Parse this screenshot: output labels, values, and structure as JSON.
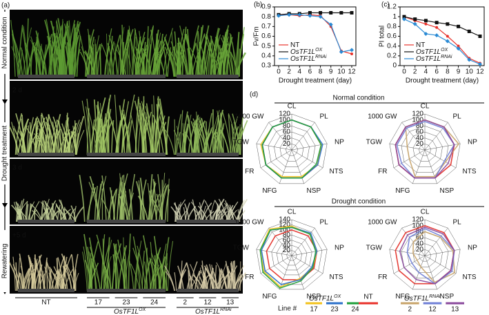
{
  "panel_a": {
    "label": "(a)",
    "side_labels": [
      "Normal condition",
      "Drought treatment",
      "Rewatering"
    ],
    "photo_labels": [
      "2 d",
      "3 d",
      "+5 d"
    ],
    "groups": [
      {
        "name": "NT"
      },
      {
        "name": "OsTF1L",
        "sup": "OX",
        "lines": [
          "17",
          "23",
          "24"
        ]
      },
      {
        "name": "OsTF1L",
        "sup": "RNAi",
        "lines": [
          "2",
          "12",
          "13"
        ]
      }
    ]
  },
  "panel_d": {
    "label": "(d)",
    "sections": [
      "Normal condition",
      "Drought condition"
    ],
    "legend": {
      "line_label": "Line #",
      "groups": [
        {
          "name": "OsTF1L",
          "sup": "OX",
          "lines": [
            "17",
            "23",
            "24"
          ],
          "colors": [
            "#f2c21b",
            "#2a6fc9",
            "#1e9e3a"
          ]
        },
        {
          "name": "NT",
          "colors": [
            "#e8312a"
          ]
        },
        {
          "name": "OsTF1L",
          "sup": "RNAi",
          "lines": [
            "2",
            "12",
            "13"
          ],
          "colors": [
            "#c8a46a",
            "#6f7fd6",
            "#8a4a9c"
          ]
        }
      ]
    }
  },
  "chart_data": [
    {
      "type": "line",
      "panel_label": "(b)",
      "x_label": "Drought treatment (day)",
      "y_label": "Fv/Fm",
      "categories": [
        "0",
        "2",
        "4",
        "6",
        "8",
        "9",
        "10",
        "12"
      ],
      "ylim": [
        0.3,
        0.9
      ],
      "yticks": [
        0.3,
        0.4,
        0.5,
        0.6,
        0.7,
        0.8,
        0.9
      ],
      "legend": "lower left",
      "series": [
        {
          "name": "NT",
          "color": "#e8312a",
          "marker": "circle",
          "values": [
            0.82,
            0.82,
            0.81,
            0.82,
            0.81,
            0.7,
            0.45,
            0.42
          ]
        },
        {
          "name": "OsTF1L",
          "name_sup": "OX",
          "color": "#111111",
          "marker": "square",
          "values": [
            0.82,
            0.83,
            0.83,
            0.84,
            0.84,
            0.84,
            0.84,
            0.84
          ]
        },
        {
          "name": "OsTF1L",
          "name_sup": "RNAi",
          "color": "#2a8ad4",
          "marker": "diamond",
          "values": [
            0.81,
            0.82,
            0.82,
            0.81,
            0.8,
            0.72,
            0.44,
            0.46
          ]
        }
      ]
    },
    {
      "type": "line",
      "panel_label": "(c)",
      "x_label": "Drought treatment (day)",
      "y_label": "PI total",
      "categories": [
        "0",
        "2",
        "4",
        "6",
        "8",
        "9",
        "10",
        "12"
      ],
      "ylim": [
        0,
        1.2
      ],
      "yticks": [
        0,
        0.2,
        0.4,
        0.6,
        0.8,
        1,
        1.2
      ],
      "legend": "lower left",
      "series": [
        {
          "name": "NT",
          "color": "#e8312a",
          "marker": "circle",
          "values": [
            1.0,
            0.92,
            0.85,
            0.78,
            0.6,
            0.4,
            0.15,
            0.05
          ]
        },
        {
          "name": "OsTF1L",
          "name_sup": "OX",
          "color": "#111111",
          "marker": "square",
          "values": [
            1.0,
            0.95,
            0.92,
            0.88,
            0.85,
            0.8,
            0.7,
            0.6
          ]
        },
        {
          "name": "OsTF1L",
          "name_sup": "RNAi",
          "color": "#2a8ad4",
          "marker": "diamond",
          "values": [
            0.95,
            0.85,
            0.65,
            0.62,
            0.5,
            0.35,
            0.12,
            0.03
          ]
        }
      ]
    },
    {
      "type": "radar",
      "categories": [
        "CL",
        "PL",
        "NP",
        "NTS",
        "NSP",
        "NFG",
        "FR",
        "TGW",
        "1000 GW"
      ],
      "rlim": [
        0,
        120
      ],
      "rticks": [
        20,
        40,
        60,
        80,
        100,
        120
      ],
      "series": [
        {
          "name": "NT",
          "color": "#e8312a",
          "values": [
            100,
            100,
            100,
            100,
            100,
            100,
            100,
            100,
            100
          ]
        },
        {
          "name": "17",
          "color": "#f2c21b",
          "values": [
            100,
            100,
            100,
            100,
            95,
            95,
            100,
            105,
            100
          ]
        },
        {
          "name": "23",
          "color": "#2a6fc9",
          "values": [
            100,
            100,
            105,
            100,
            100,
            100,
            100,
            100,
            100
          ]
        },
        {
          "name": "24",
          "color": "#1e9e3a",
          "values": [
            100,
            100,
            100,
            95,
            100,
            100,
            100,
            100,
            100
          ]
        }
      ]
    },
    {
      "type": "radar",
      "categories": [
        "CL",
        "PL",
        "NP",
        "NTS",
        "NSP",
        "NFG",
        "FR",
        "TGW",
        "1000 GW"
      ],
      "rlim": [
        0,
        120
      ],
      "rticks": [
        20,
        40,
        60,
        80,
        100,
        120
      ],
      "series": [
        {
          "name": "NT",
          "color": "#e8312a",
          "values": [
            100,
            100,
            100,
            100,
            100,
            100,
            100,
            100,
            100
          ]
        },
        {
          "name": "2",
          "color": "#c8a46a",
          "values": [
            100,
            100,
            115,
            80,
            95,
            95,
            60,
            60,
            100
          ]
        },
        {
          "name": "12",
          "color": "#6f7fd6",
          "values": [
            95,
            95,
            100,
            75,
            100,
            100,
            90,
            95,
            95
          ]
        },
        {
          "name": "13",
          "color": "#8a4a9c",
          "values": [
            100,
            100,
            100,
            90,
            100,
            100,
            100,
            100,
            100
          ]
        }
      ]
    },
    {
      "type": "radar",
      "categories": [
        "CL",
        "PL",
        "NP",
        "NTS",
        "NSP",
        "NFG",
        "FR",
        "TGW",
        "1000 GW"
      ],
      "rlim": [
        0,
        140
      ],
      "rticks": [
        20,
        40,
        60,
        80,
        100,
        120,
        140
      ],
      "series": [
        {
          "name": "NT",
          "color": "#e8312a",
          "values": [
            100,
            100,
            100,
            100,
            100,
            100,
            100,
            100,
            100
          ]
        },
        {
          "name": "17",
          "color": "#f2c21b",
          "values": [
            115,
            110,
            100,
            95,
            95,
            130,
            125,
            125,
            135
          ]
        },
        {
          "name": "23",
          "color": "#2a6fc9",
          "values": [
            110,
            115,
            100,
            90,
            100,
            120,
            120,
            120,
            130
          ]
        },
        {
          "name": "24",
          "color": "#1e9e3a",
          "values": [
            110,
            110,
            95,
            95,
            105,
            135,
            130,
            125,
            130
          ]
        }
      ]
    },
    {
      "type": "radar",
      "categories": [
        "CL",
        "PL",
        "NP",
        "NTS",
        "NSP",
        "NFG",
        "FR",
        "TGW",
        "1000 GW"
      ],
      "rlim": [
        0,
        120
      ],
      "rticks": [
        20,
        40,
        60,
        80,
        100,
        120
      ],
      "series": [
        {
          "name": "NT",
          "color": "#e8312a",
          "values": [
            100,
            100,
            100,
            100,
            100,
            100,
            100,
            100,
            100
          ]
        },
        {
          "name": "2",
          "color": "#c8a46a",
          "values": [
            80,
            80,
            95,
            115,
            95,
            40,
            30,
            40,
            60
          ]
        },
        {
          "name": "12",
          "color": "#6f7fd6",
          "values": [
            90,
            85,
            100,
            105,
            100,
            60,
            50,
            60,
            80
          ]
        },
        {
          "name": "13",
          "color": "#8a4a9c",
          "values": [
            95,
            95,
            100,
            100,
            100,
            85,
            80,
            85,
            90
          ]
        }
      ]
    }
  ]
}
